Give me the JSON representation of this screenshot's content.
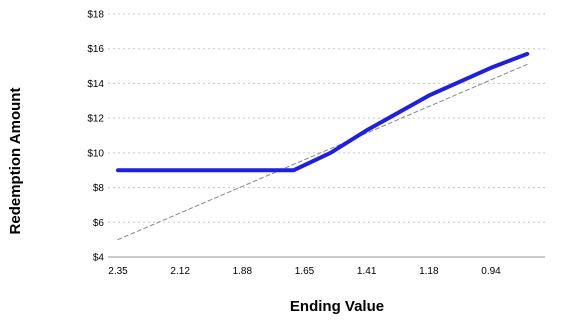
{
  "chart_data": {
    "type": "line",
    "title": "",
    "xlabel": "Ending Value",
    "ylabel": "Redemption Amount",
    "x_tick_labels": [
      "2.35",
      "2.12",
      "1.88",
      "1.65",
      "1.41",
      "1.18",
      "0.94"
    ],
    "y_tick_labels": [
      "$4",
      "$6",
      "$8",
      "$10",
      "$12",
      "$14",
      "$16",
      "$18"
    ],
    "ylim": [
      4,
      18
    ],
    "grid": "horizontal dashed",
    "series": [
      {
        "style": "solid",
        "color": "#1f1fe0",
        "points": [
          {
            "x": 2.35,
            "y": 9.0
          },
          {
            "x": 2.12,
            "y": 9.0
          },
          {
            "x": 1.88,
            "y": 9.0
          },
          {
            "x": 1.69,
            "y": 9.0
          },
          {
            "x": 1.55,
            "y": 10.0
          },
          {
            "x": 1.41,
            "y": 11.3
          },
          {
            "x": 1.18,
            "y": 13.3
          },
          {
            "x": 0.94,
            "y": 14.9
          },
          {
            "x": 0.8,
            "y": 15.7
          }
        ]
      },
      {
        "style": "dashed",
        "color": "#888888",
        "points": [
          {
            "x": 2.35,
            "y": 5.0
          },
          {
            "x": 0.8,
            "y": 15.1
          }
        ]
      }
    ]
  }
}
